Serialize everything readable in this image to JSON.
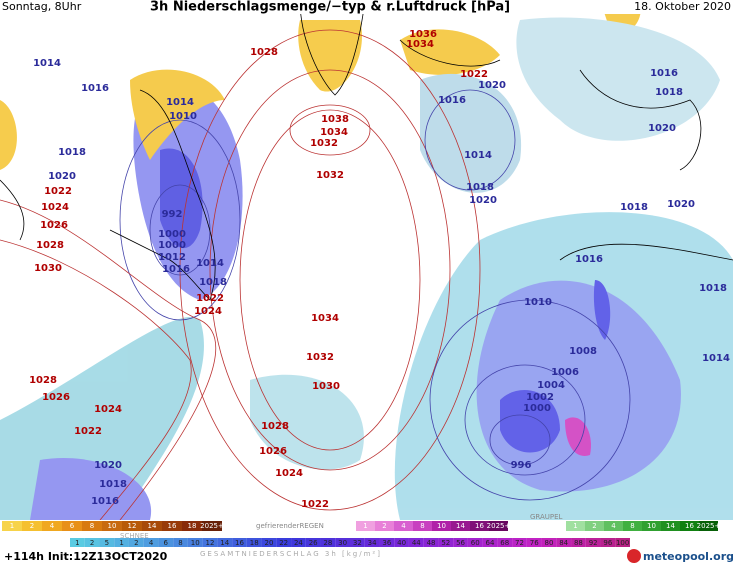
{
  "header": {
    "day": "Sonntag, 8Uhr",
    "title": "3h Niederschlagsmenge/−typ & r.Luftdruck [hPa]",
    "date": "18. Oktober 2020"
  },
  "pressure_labels": [
    {
      "text": "1014",
      "color": "#2b2b9a"
    },
    {
      "text": "1016",
      "color": "#2b2b9a"
    },
    {
      "text": "1018",
      "color": "#2b2b9a"
    },
    {
      "text": "1020",
      "color": "#2b2b9a"
    },
    {
      "text": "1014",
      "color": "#2b2b9a"
    },
    {
      "text": "1010",
      "color": "#2b2b9a"
    },
    {
      "text": "992",
      "color": "#2b2b9a"
    },
    {
      "text": "1000",
      "color": "#2b2b9a"
    },
    {
      "text": "1000",
      "color": "#2b2b9a"
    },
    {
      "text": "1012",
      "color": "#2b2b9a"
    },
    {
      "text": "1016",
      "color": "#2b2b9a"
    },
    {
      "text": "1014",
      "color": "#2b2b9a"
    },
    {
      "text": "1018",
      "color": "#2b2b9a"
    },
    {
      "text": "1016",
      "color": "#2b2b9a"
    },
    {
      "text": "1014",
      "color": "#2b2b9a"
    },
    {
      "text": "1018",
      "color": "#2b2b9a"
    },
    {
      "text": "1020",
      "color": "#2b2b9a"
    },
    {
      "text": "1020",
      "color": "#2b2b9a"
    },
    {
      "text": "1016",
      "color": "#2b2b9a"
    },
    {
      "text": "1018",
      "color": "#2b2b9a"
    },
    {
      "text": "1020",
      "color": "#2b2b9a"
    },
    {
      "text": "1018",
      "color": "#2b2b9a"
    },
    {
      "text": "1020",
      "color": "#2b2b9a"
    },
    {
      "text": "1016",
      "color": "#2b2b9a"
    },
    {
      "text": "1018",
      "color": "#2b2b9a"
    },
    {
      "text": "1014",
      "color": "#2b2b9a"
    },
    {
      "text": "1010",
      "color": "#2b2b9a"
    },
    {
      "text": "1008",
      "color": "#2b2b9a"
    },
    {
      "text": "1006",
      "color": "#2b2b9a"
    },
    {
      "text": "1004",
      "color": "#2b2b9a"
    },
    {
      "text": "1002",
      "color": "#2b2b9a"
    },
    {
      "text": "1000",
      "color": "#2b2b9a"
    },
    {
      "text": "996",
      "color": "#2b2b9a"
    },
    {
      "text": "1020",
      "color": "#2b2b9a"
    },
    {
      "text": "1018",
      "color": "#2b2b9a"
    },
    {
      "text": "1016",
      "color": "#2b2b9a"
    },
    {
      "text": "1028",
      "color": "#b00000"
    },
    {
      "text": "1036",
      "color": "#b00000"
    },
    {
      "text": "1034",
      "color": "#b00000"
    },
    {
      "text": "1022",
      "color": "#b00000"
    },
    {
      "text": "1038",
      "color": "#b00000"
    },
    {
      "text": "1034",
      "color": "#b00000"
    },
    {
      "text": "1032",
      "color": "#b00000"
    },
    {
      "text": "1032",
      "color": "#b00000"
    },
    {
      "text": "1022",
      "color": "#b00000"
    },
    {
      "text": "1024",
      "color": "#b00000"
    },
    {
      "text": "1026",
      "color": "#b00000"
    },
    {
      "text": "1028",
      "color": "#b00000"
    },
    {
      "text": "1030",
      "color": "#b00000"
    },
    {
      "text": "1022",
      "color": "#b00000"
    },
    {
      "text": "1024",
      "color": "#b00000"
    },
    {
      "text": "1034",
      "color": "#b00000"
    },
    {
      "text": "1032",
      "color": "#b00000"
    },
    {
      "text": "1030",
      "color": "#b00000"
    },
    {
      "text": "1028",
      "color": "#b00000"
    },
    {
      "text": "1026",
      "color": "#b00000"
    },
    {
      "text": "1024",
      "color": "#b00000"
    },
    {
      "text": "1022",
      "color": "#b00000"
    },
    {
      "text": "1028",
      "color": "#b00000"
    },
    {
      "text": "1026",
      "color": "#b00000"
    },
    {
      "text": "1024",
      "color": "#b00000"
    },
    {
      "text": "1022",
      "color": "#b00000"
    }
  ],
  "legend": {
    "snow": {
      "label": "SCHNEE",
      "steps": [
        "1",
        "2",
        "4",
        "6",
        "8",
        "10",
        "12",
        "14",
        "16",
        "18",
        "2025+"
      ]
    },
    "freezing_rain": {
      "label": "gefrierenderREGEN",
      "steps": [
        "1",
        "2",
        "4",
        "8",
        "10",
        "14",
        "16",
        "2025+"
      ]
    },
    "graupel": {
      "label": "GRAUPEL",
      "steps": [
        "1",
        "2",
        "4",
        "8",
        "10",
        "14",
        "16",
        "2025+"
      ]
    },
    "total": {
      "label": "GESAMTNIEDERSCHLAG 3h [kg/m²]",
      "steps": [
        "1",
        "2",
        "5",
        "1",
        "2",
        "4",
        "6",
        "8",
        "10",
        "12",
        "14",
        "16",
        "18",
        "20",
        "22",
        "24",
        "26",
        "28",
        "30",
        "32",
        "34",
        "36",
        "40",
        "44",
        "48",
        "52",
        "56",
        "60",
        "64",
        "68",
        "72",
        "76",
        "80",
        "84",
        "88",
        "92",
        "96",
        "100"
      ]
    }
  },
  "footer": {
    "run": "+114h  Init:12Z13OCT2020",
    "brand": "meteopool.org"
  }
}
